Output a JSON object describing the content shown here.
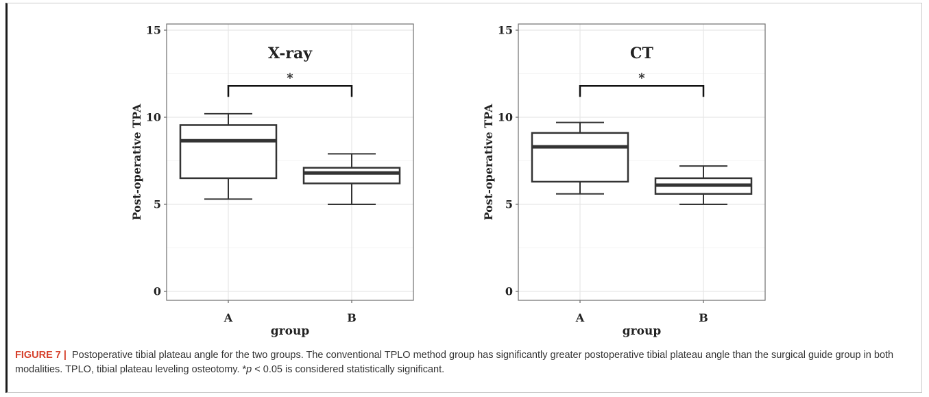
{
  "chart_data": [
    {
      "type": "boxplot",
      "title": "X-ray",
      "xlabel": "group",
      "ylabel": "Post-operative TPA",
      "ylim": [
        0,
        15
      ],
      "yticks": [
        "0",
        "5",
        "10",
        "15"
      ],
      "grid": true,
      "categories": [
        "A",
        "B"
      ],
      "boxes": [
        {
          "group": "A",
          "min": 5.3,
          "q1": 6.5,
          "median": 8.65,
          "q3": 9.55,
          "max": 10.2
        },
        {
          "group": "B",
          "min": 5.0,
          "q1": 6.2,
          "median": 6.8,
          "q3": 7.1,
          "max": 7.9
        }
      ],
      "significance": {
        "from": "A",
        "to": "B",
        "label": "*",
        "y": 11.8
      }
    },
    {
      "type": "boxplot",
      "title": "CT",
      "xlabel": "group",
      "ylabel": "Post-operative TPA",
      "ylim": [
        0,
        15
      ],
      "yticks": [
        "0",
        "5",
        "10",
        "15"
      ],
      "grid": true,
      "categories": [
        "A",
        "B"
      ],
      "boxes": [
        {
          "group": "A",
          "min": 5.6,
          "q1": 6.3,
          "median": 8.3,
          "q3": 9.1,
          "max": 9.7
        },
        {
          "group": "B",
          "min": 5.0,
          "q1": 5.6,
          "median": 6.1,
          "q3": 6.5,
          "max": 7.2
        }
      ],
      "significance": {
        "from": "A",
        "to": "B",
        "label": "*",
        "y": 11.8
      }
    }
  ],
  "caption": {
    "label": "FIGURE 7",
    "separator": "|",
    "text_before_p": " Postoperative tibial plateau angle for the two groups. The conventional TPLO method group has significantly greater postoperative tibial plateau angle than the surgical guide group in both modalities. TPLO, tibial plateau leveling osteotomy. *",
    "p_symbol": "p",
    "text_after_p": " < 0.05 is considered statistically significant."
  },
  "colors": {
    "line": "#333333",
    "grid": "#e6e6e6",
    "panel_border": "#6e6e6e",
    "caption_label": "#d6402b"
  }
}
